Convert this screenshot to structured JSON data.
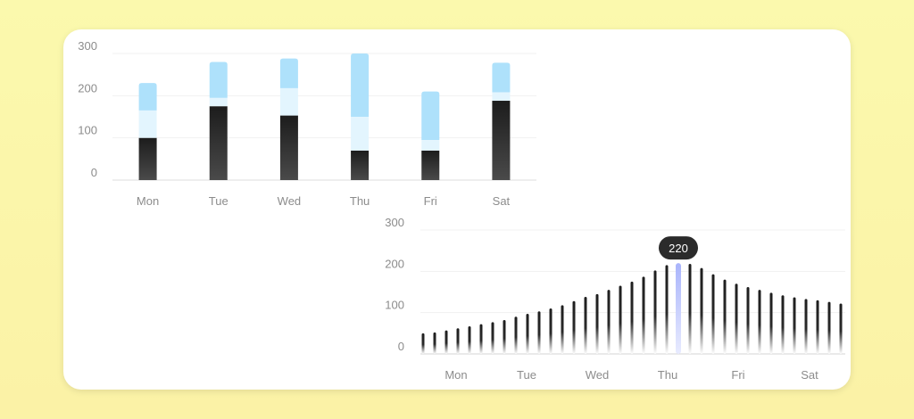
{
  "chart_data": [
    {
      "type": "bar",
      "stacked": true,
      "categories": [
        "Mon",
        "Tue",
        "Wed",
        "Thu",
        "Fri",
        "Sat"
      ],
      "series": [
        {
          "values": [
            100,
            175,
            153,
            70,
            70,
            188
          ],
          "color": "#2f2f2f"
        },
        {
          "values": [
            65,
            20,
            65,
            80,
            25,
            20
          ],
          "color": "#e3f5fe"
        },
        {
          "values": [
            65,
            85,
            70,
            150,
            115,
            70
          ],
          "color": "#aee1fb"
        }
      ],
      "yticks": [
        0,
        100,
        200,
        300
      ],
      "ylim": [
        0,
        300
      ],
      "grid": true
    },
    {
      "type": "bar",
      "x_labels": [
        "Mon",
        "Tue",
        "Wed",
        "Thu",
        "Fri",
        "Sat"
      ],
      "values": [
        50,
        52,
        57,
        62,
        67,
        72,
        77,
        82,
        90,
        97,
        103,
        110,
        118,
        128,
        138,
        145,
        155,
        165,
        175,
        187,
        202,
        215,
        220,
        218,
        208,
        193,
        180,
        170,
        162,
        155,
        148,
        142,
        137,
        133,
        130,
        126,
        122
      ],
      "highlight_index": 22,
      "highlight_color": "#a9b4fb",
      "bar_color": "#1e1e1e",
      "tooltip": "220",
      "yticks": [
        0,
        100,
        200,
        300
      ],
      "ylim": [
        0,
        300
      ],
      "grid": true
    }
  ]
}
